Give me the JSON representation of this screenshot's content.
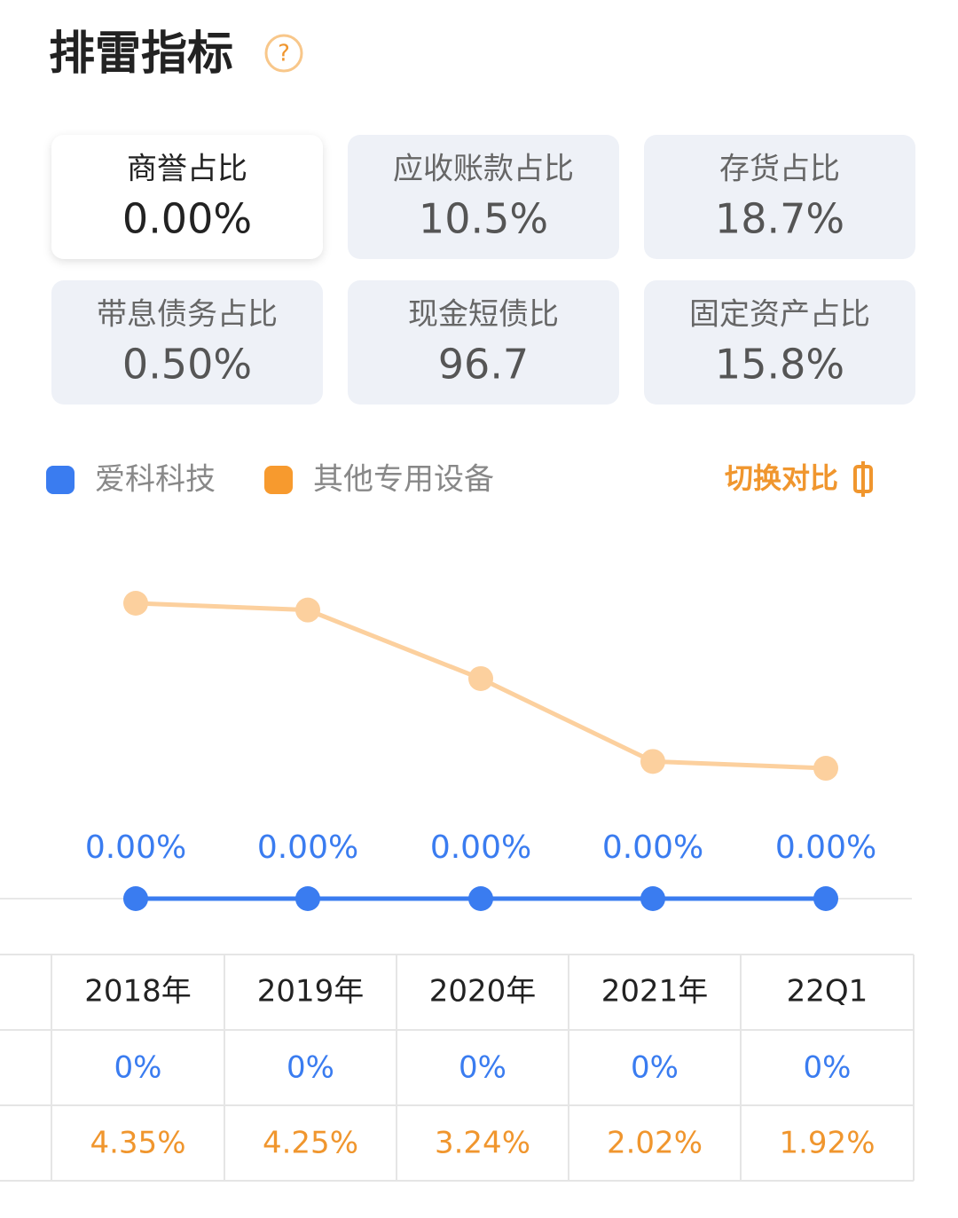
{
  "header": {
    "title": "排雷指标",
    "help": "?"
  },
  "metrics": [
    {
      "label": "商誉占比",
      "value": "0.00%"
    },
    {
      "label": "应收账款占比",
      "value": "10.5%"
    },
    {
      "label": "存货占比",
      "value": "18.7%"
    },
    {
      "label": "带息债务占比",
      "value": "0.50%"
    },
    {
      "label": "现金短债比",
      "value": "96.7"
    },
    {
      "label": "固定资产占比",
      "value": "15.8%"
    }
  ],
  "toggle": "切换对比",
  "chart_data": {
    "type": "line",
    "categories": [
      "2018年",
      "2019年",
      "2020年",
      "2021年",
      "22Q1"
    ],
    "series": [
      {
        "name": "爱科科技",
        "color": "#3a7cf0",
        "values": [
          0,
          0,
          0,
          0,
          0
        ],
        "value_labels": [
          "0.00%",
          "0.00%",
          "0.00%",
          "0.00%",
          "0.00%"
        ]
      },
      {
        "name": "其他专用设备",
        "color": "#fcd09e",
        "values": [
          4.35,
          4.25,
          3.24,
          2.02,
          1.92
        ]
      }
    ]
  },
  "table": {
    "rows": [
      [
        "0%",
        "0%",
        "0%",
        "0%",
        "0%"
      ],
      [
        "4.35%",
        "4.25%",
        "3.24%",
        "2.02%",
        "1.92%"
      ]
    ]
  }
}
